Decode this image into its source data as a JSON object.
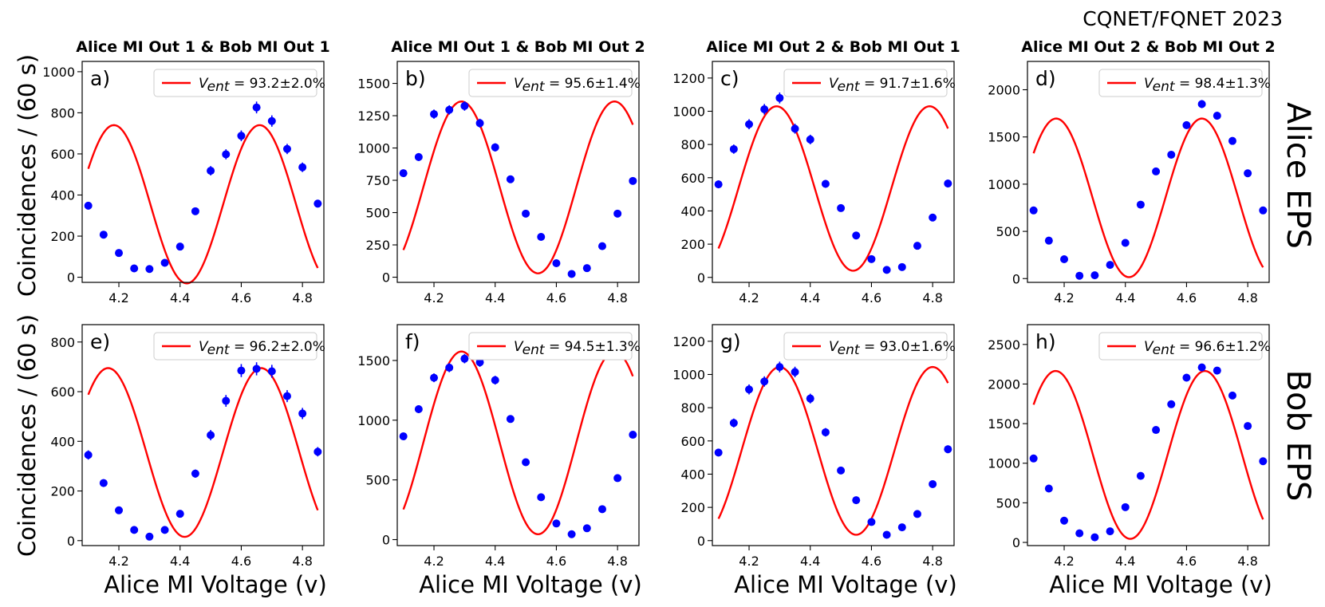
{
  "figure": {
    "corner_label": "CQNET/FQNET 2023",
    "ylabel": "Coincidences / (60 s)",
    "xlabel": "Alice MI Voltage (v)",
    "row_labels": [
      "Alice EPS",
      "Bob EPS"
    ],
    "column_titles": [
      "Alice MI Out 1 & Bob MI Out 1",
      "Alice MI Out 1 & Bob MI Out 2",
      "Alice MI Out 2 & Bob MI Out 1",
      "Alice MI Out 2 & Bob MI Out 2"
    ],
    "legend_symbol": "V",
    "legend_subscript": "ent"
  },
  "colors": {
    "fit": "#ff0000",
    "data": "#0000ff",
    "axes": "#000000"
  },
  "chart_data": [
    {
      "panel": "a)",
      "type": "scatter",
      "row": 0,
      "col": 0,
      "title": "Alice MI Out 1 & Bob MI Out 1",
      "legend": "93.2±2.0%",
      "xlim": [
        4.08,
        4.87
      ],
      "ylim": [
        -25,
        1050
      ],
      "yticks": [
        0,
        200,
        400,
        600,
        800,
        1000
      ],
      "xticks": [
        "4.2",
        "4.4",
        "4.6",
        "4.8"
      ],
      "x": [
        4.1,
        4.15,
        4.2,
        4.25,
        4.3,
        4.35,
        4.4,
        4.45,
        4.5,
        4.55,
        4.6,
        4.65,
        4.7,
        4.75,
        4.8,
        4.85
      ],
      "y": [
        348,
        207,
        118,
        43,
        40,
        70,
        149,
        321,
        518,
        598,
        688,
        826,
        760,
        624,
        535,
        358
      ],
      "fit": {
        "A": 385,
        "C": 355,
        "f": 2.1,
        "x0": 4.66
      }
    },
    {
      "panel": "b)",
      "type": "scatter",
      "row": 0,
      "col": 1,
      "title": "Alice MI Out 1 & Bob MI Out 2",
      "legend": "95.6±1.4%",
      "xlim": [
        4.08,
        4.87
      ],
      "ylim": [
        -40,
        1670
      ],
      "yticks": [
        0,
        250,
        500,
        750,
        1000,
        1250,
        1500
      ],
      "xticks": [
        "4.2",
        "4.4",
        "4.6",
        "4.8"
      ],
      "x": [
        4.1,
        4.15,
        4.2,
        4.25,
        4.3,
        4.35,
        4.4,
        4.45,
        4.5,
        4.55,
        4.6,
        4.65,
        4.7,
        4.75,
        4.8,
        4.85
      ],
      "y": [
        805,
        930,
        1262,
        1295,
        1325,
        1192,
        1005,
        758,
        492,
        312,
        108,
        25,
        70,
        240,
        492,
        745
      ],
      "fit": {
        "A": 665,
        "C": 695,
        "f": 2.0,
        "x0": 4.29
      }
    },
    {
      "panel": "c)",
      "type": "scatter",
      "row": 0,
      "col": 2,
      "title": "Alice MI Out 2 & Bob MI Out 1",
      "legend": "91.7±1.6%",
      "xlim": [
        4.08,
        4.87
      ],
      "ylim": [
        -30,
        1300
      ],
      "yticks": [
        0,
        200,
        400,
        600,
        800,
        1000,
        1200
      ],
      "xticks": [
        "4.2",
        "4.4",
        "4.6",
        "4.8"
      ],
      "x": [
        4.1,
        4.15,
        4.2,
        4.25,
        4.3,
        4.35,
        4.4,
        4.45,
        4.5,
        4.55,
        4.6,
        4.65,
        4.7,
        4.75,
        4.8,
        4.85
      ],
      "y": [
        560,
        772,
        922,
        1012,
        1080,
        895,
        830,
        563,
        417,
        252,
        110,
        45,
        62,
        190,
        360,
        565
      ],
      "fit": {
        "A": 495,
        "C": 535,
        "f": 2.0,
        "x0": 4.29
      }
    },
    {
      "panel": "d)",
      "type": "scatter",
      "row": 0,
      "col": 3,
      "title": "Alice MI Out 2 & Bob MI Out 2",
      "legend": "98.4±1.3%",
      "xlim": [
        4.08,
        4.87
      ],
      "ylim": [
        -40,
        2300
      ],
      "yticks": [
        0,
        500,
        1000,
        1500,
        2000
      ],
      "xticks": [
        "4.2",
        "4.4",
        "4.6",
        "4.8"
      ],
      "x": [
        4.1,
        4.15,
        4.2,
        4.25,
        4.3,
        4.35,
        4.4,
        4.45,
        4.5,
        4.55,
        4.6,
        4.65,
        4.7,
        4.75,
        4.8,
        4.85
      ],
      "y": [
        722,
        402,
        205,
        30,
        35,
        145,
        378,
        783,
        1135,
        1312,
        1625,
        1848,
        1725,
        1458,
        1115,
        722
      ],
      "fit": {
        "A": 840,
        "C": 855,
        "f": 2.1,
        "x0": 4.65
      }
    },
    {
      "panel": "e)",
      "type": "scatter",
      "row": 1,
      "col": 0,
      "title": "",
      "legend": "96.2±2.0%",
      "xlim": [
        4.08,
        4.87
      ],
      "ylim": [
        -20,
        870
      ],
      "yticks": [
        0,
        200,
        400,
        600,
        800
      ],
      "xticks": [
        "4.2",
        "4.4",
        "4.6",
        "4.8"
      ],
      "x": [
        4.1,
        4.15,
        4.2,
        4.25,
        4.3,
        4.35,
        4.4,
        4.45,
        4.5,
        4.55,
        4.6,
        4.65,
        4.7,
        4.75,
        4.8,
        4.85
      ],
      "y": [
        345,
        232,
        122,
        43,
        16,
        43,
        108,
        270,
        425,
        563,
        685,
        692,
        682,
        582,
        512,
        358
      ],
      "fit": {
        "A": 340,
        "C": 355,
        "f": 2.0,
        "x0": 4.665
      }
    },
    {
      "panel": "f)",
      "type": "scatter",
      "row": 1,
      "col": 1,
      "title": "",
      "legend": "94.5±1.3%",
      "xlim": [
        4.08,
        4.87
      ],
      "ylim": [
        -50,
        1800
      ],
      "yticks": [
        0,
        500,
        1000,
        1500
      ],
      "xticks": [
        "4.2",
        "4.4",
        "4.6",
        "4.8"
      ],
      "x": [
        4.1,
        4.15,
        4.2,
        4.25,
        4.3,
        4.35,
        4.4,
        4.45,
        4.5,
        4.55,
        4.6,
        4.65,
        4.7,
        4.75,
        4.8,
        4.85
      ],
      "y": [
        865,
        1092,
        1355,
        1440,
        1515,
        1485,
        1335,
        1010,
        648,
        355,
        135,
        45,
        95,
        255,
        515,
        878
      ],
      "fit": {
        "A": 765,
        "C": 810,
        "f": 2.0,
        "x0": 4.29
      }
    },
    {
      "panel": "g)",
      "type": "scatter",
      "row": 1,
      "col": 2,
      "title": "",
      "legend": "93.0±1.6%",
      "xlim": [
        4.08,
        4.87
      ],
      "ylim": [
        -30,
        1300
      ],
      "yticks": [
        0,
        200,
        400,
        600,
        800,
        1000,
        1200
      ],
      "xticks": [
        "4.2",
        "4.4",
        "4.6",
        "4.8"
      ],
      "x": [
        4.1,
        4.15,
        4.2,
        4.25,
        4.3,
        4.35,
        4.4,
        4.45,
        4.5,
        4.55,
        4.6,
        4.65,
        4.7,
        4.75,
        4.8,
        4.85
      ],
      "y": [
        530,
        708,
        910,
        958,
        1045,
        1015,
        855,
        652,
        422,
        243,
        112,
        35,
        80,
        160,
        340,
        550
      ],
      "fit": {
        "A": 505,
        "C": 540,
        "f": 2.0,
        "x0": 4.3
      }
    },
    {
      "panel": "h)",
      "type": "scatter",
      "row": 1,
      "col": 3,
      "title": "",
      "legend": "96.6±1.2%",
      "xlim": [
        4.08,
        4.87
      ],
      "ylim": [
        -40,
        2750
      ],
      "yticks": [
        0,
        500,
        1000,
        1500,
        2000,
        2500
      ],
      "xticks": [
        "4.2",
        "4.4",
        "4.6",
        "4.8"
      ],
      "x": [
        4.1,
        4.15,
        4.2,
        4.25,
        4.3,
        4.35,
        4.4,
        4.45,
        4.5,
        4.55,
        4.6,
        4.65,
        4.7,
        4.75,
        4.8,
        4.85
      ],
      "y": [
        1060,
        680,
        275,
        115,
        65,
        140,
        445,
        840,
        1420,
        1745,
        2080,
        2210,
        2170,
        1855,
        1470,
        1025
      ],
      "fit": {
        "A": 1060,
        "C": 1105,
        "f": 2.05,
        "x0": 4.66
      }
    }
  ]
}
